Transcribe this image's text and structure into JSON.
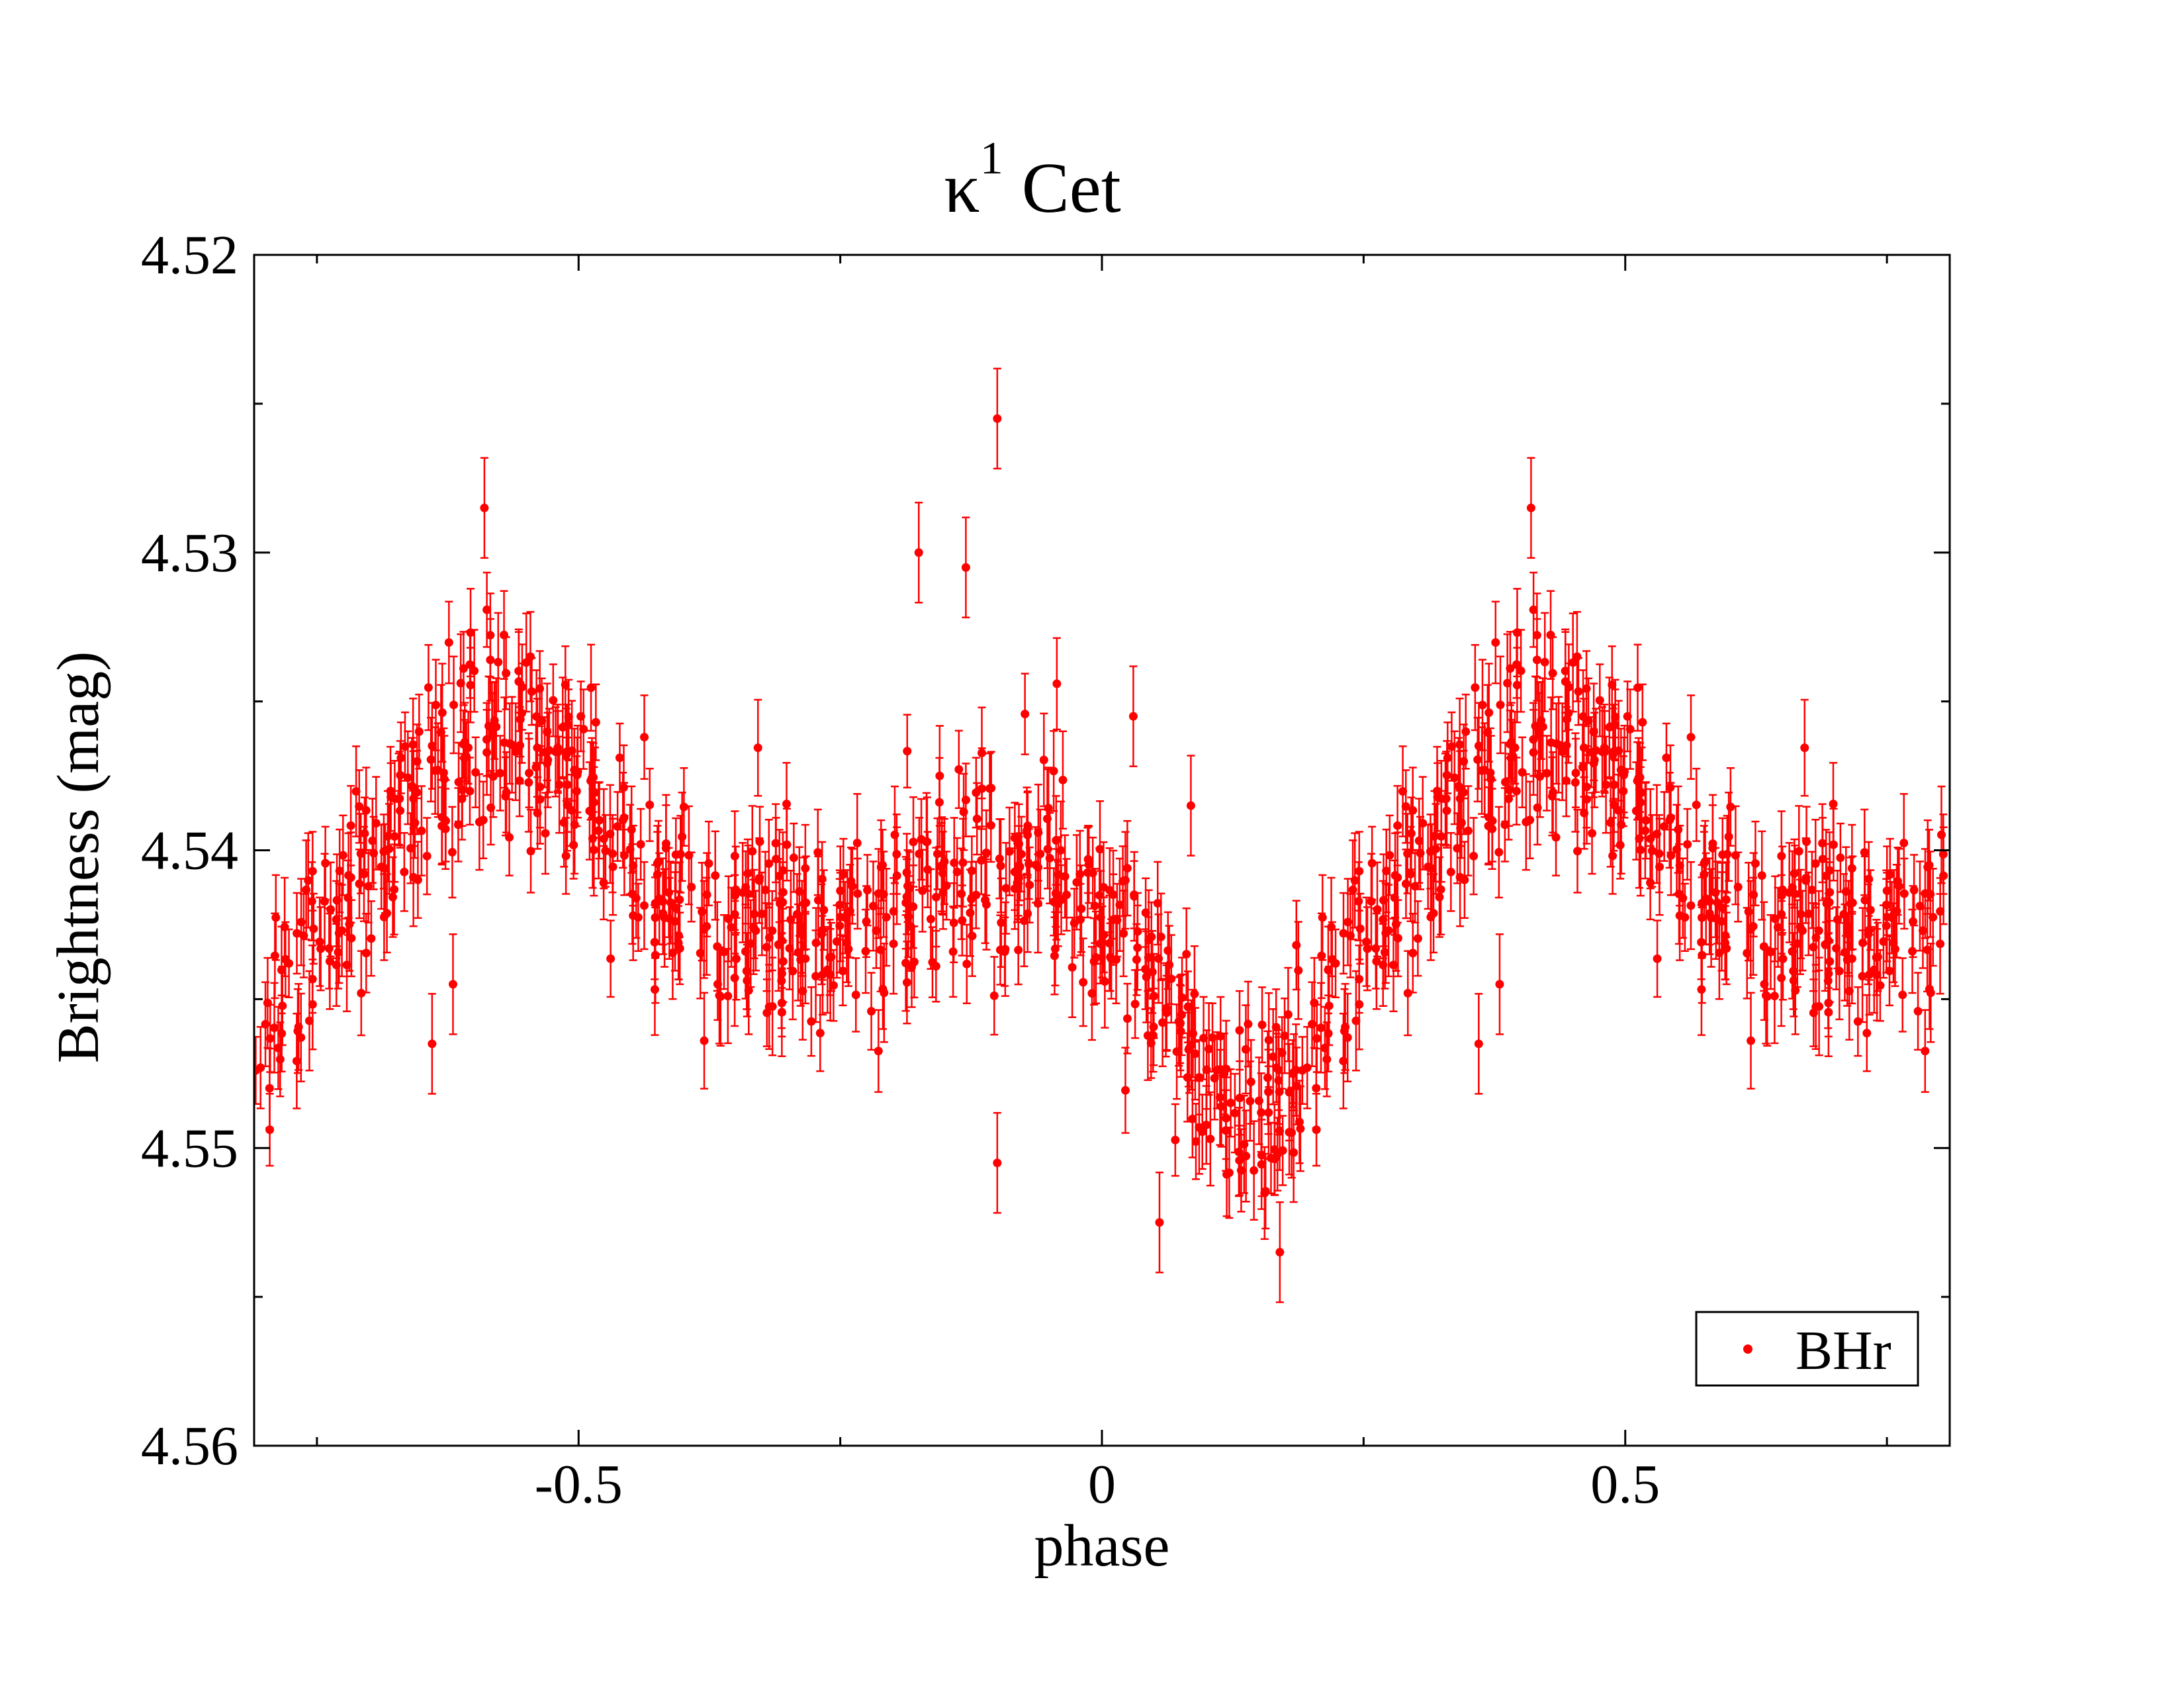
{
  "chart_data": {
    "type": "scatter",
    "title": "κ",
    "title_superscript": "1",
    "title_suffix": "Cet",
    "xlabel": "phase",
    "ylabel": "Brightness (mag)",
    "xlim": [
      -0.81,
      0.81
    ],
    "ylim": [
      4.52,
      4.56
    ],
    "y_inverted": true,
    "x_ticks": [
      -0.5,
      0,
      0.5
    ],
    "x_tick_labels": [
      "-0.5",
      "0",
      "0.5"
    ],
    "x_minor_ticks": [
      -0.75,
      -0.25,
      0.25,
      0.75
    ],
    "y_ticks": [
      4.52,
      4.53,
      4.54,
      4.55,
      4.56
    ],
    "y_tick_labels": [
      "4.52",
      "4.53",
      "4.54",
      "4.55",
      "4.56"
    ],
    "y_minor_ticks": [
      4.525,
      4.535,
      4.545,
      4.555
    ],
    "grid": false,
    "legend_position": "bottom-right",
    "series": [
      {
        "name": "BHr",
        "color": "#ff0000",
        "marker": "filled-circle",
        "error_bars": true,
        "phase_repeat_period": 1.0,
        "anchors": {
          "x": [
            -0.81,
            -0.72,
            -0.65,
            -0.6,
            -0.55,
            -0.5,
            -0.42,
            -0.35,
            -0.28,
            -0.2,
            -0.12,
            -0.05,
            0.05,
            0.12,
            0.17,
            0.22,
            0.28,
            0.35,
            0.4,
            0.45,
            0.5,
            0.58,
            0.65,
            0.72,
            0.81
          ],
          "y": [
            4.5445,
            4.5415,
            4.5375,
            4.5365,
            4.536,
            4.538,
            4.5415,
            4.5425,
            4.5425,
            4.5425,
            4.5405,
            4.5405,
            4.5445,
            4.549,
            4.5485,
            4.5445,
            4.5415,
            4.5375,
            4.5365,
            4.536,
            4.538,
            4.5415,
            4.5425,
            4.542,
            4.5445
          ]
        },
        "scatter_sigma_mag": 0.0017,
        "typical_error_mag": 0.0014,
        "point_count": 1100,
        "outliers": [
          {
            "x": -0.59,
            "y": 4.5285
          },
          {
            "x": -0.175,
            "y": 4.53
          },
          {
            "x": -0.13,
            "y": 4.5305
          },
          {
            "x": -0.155,
            "y": 4.5375
          },
          {
            "x": -0.1,
            "y": 4.5255
          },
          {
            "x": 0.03,
            "y": 4.5355
          },
          {
            "x": 0.055,
            "y": 4.5525
          },
          {
            "x": 0.17,
            "y": 4.5535
          },
          {
            "x": 0.085,
            "y": 4.5385
          },
          {
            "x": -0.1,
            "y": 4.5505
          },
          {
            "x": -0.64,
            "y": 4.5465
          },
          {
            "x": -0.62,
            "y": 4.5445
          },
          {
            "x": 0.41,
            "y": 4.5285
          },
          {
            "x": 0.36,
            "y": 4.5465
          },
          {
            "x": 0.38,
            "y": 4.5445
          }
        ]
      }
    ]
  }
}
